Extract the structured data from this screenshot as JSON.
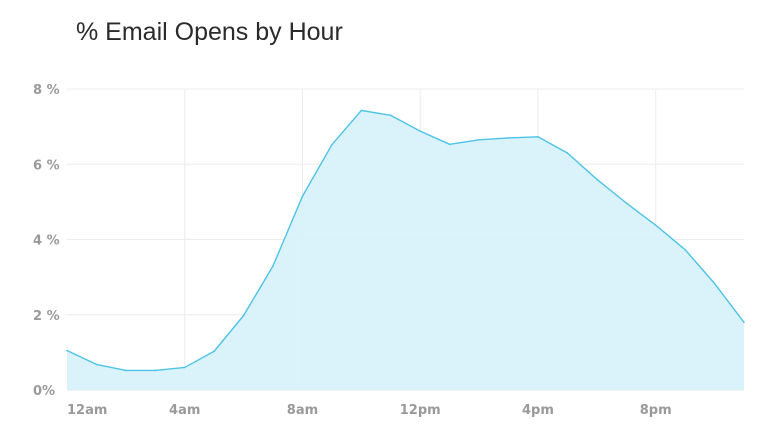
{
  "chart_data": {
    "type": "area",
    "title": "% Email Opens by Hour",
    "xlabel": "",
    "ylabel": "",
    "x": [
      0,
      1,
      2,
      3,
      4,
      5,
      6,
      7,
      8,
      9,
      10,
      11,
      12,
      13,
      14,
      15,
      16,
      17,
      18,
      19,
      20,
      21,
      22,
      23
    ],
    "series": [
      {
        "values": [
          1.05,
          0.68,
          0.52,
          0.52,
          0.6,
          1.03,
          1.98,
          3.3,
          5.15,
          6.52,
          7.43,
          7.3,
          6.88,
          6.53,
          6.65,
          6.7,
          6.73,
          6.3,
          5.6,
          4.97,
          4.38,
          3.73,
          2.83,
          1.8
        ]
      }
    ],
    "ylim": [
      0,
      8
    ],
    "y_ticks": [
      {
        "value": 0,
        "label": "0%"
      },
      {
        "value": 2,
        "label": "2 %"
      },
      {
        "value": 4,
        "label": "4 %"
      },
      {
        "value": 6,
        "label": "6 %"
      },
      {
        "value": 8,
        "label": "8 %"
      }
    ],
    "x_ticks": [
      {
        "value": 0,
        "label": "12am"
      },
      {
        "value": 4,
        "label": "4am"
      },
      {
        "value": 8,
        "label": "8am"
      },
      {
        "value": 12,
        "label": "12pm"
      },
      {
        "value": 16,
        "label": "4pm"
      },
      {
        "value": 20,
        "label": "8pm"
      }
    ],
    "grid": true,
    "legend": "none",
    "colors": {
      "line": "#4ec3e6",
      "fill": "#d6f2fb",
      "grid": "#ececec",
      "tick_text": "#9a9a9a",
      "title": "#2b2b2b"
    }
  }
}
